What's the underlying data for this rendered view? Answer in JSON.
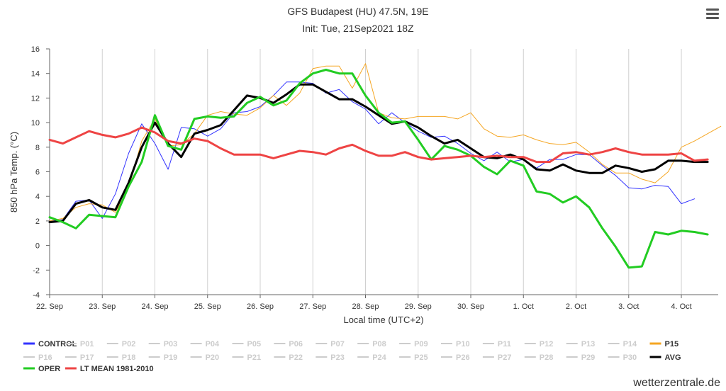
{
  "page": {
    "credit": "wetterzentrale.de",
    "menu_icon": "hamburger-menu-icon"
  },
  "chart_data": {
    "type": "line",
    "title": "GFS Budapest (HU) 47.5N, 19E",
    "subtitle": "Init: Tue, 21Sep2021 18Z",
    "xlabel": "Local time (UTC+2)",
    "ylabel": "850 hPa Temp. (°C)",
    "ylim": [
      -4,
      16
    ],
    "yticks": [
      -4,
      -2,
      0,
      2,
      4,
      6,
      8,
      10,
      12,
      14,
      16
    ],
    "xlim": [
      0,
      12.7
    ],
    "xtick_positions": [
      0,
      1,
      2,
      3,
      4,
      5,
      6,
      7,
      8,
      9,
      10,
      11,
      12
    ],
    "xtick_labels": [
      "22. Sep",
      "23. Sep",
      "24. Sep",
      "25. Sep",
      "26. Sep",
      "27. Sep",
      "28. Sep",
      "29. Sep",
      "30. Sep",
      "1. Oct",
      "2. Oct",
      "3. Oct",
      "4. Oct"
    ],
    "x_step_days": 0.25,
    "grid": {
      "vertical": true,
      "horizontal": false
    },
    "series": [
      {
        "name": "CONTROL",
        "color": "#3333ff",
        "width": 1,
        "values": [
          2.0,
          2.1,
          3.6,
          3.7,
          2.2,
          4.2,
          7.5,
          9.9,
          8.3,
          6.2,
          9.6,
          9.5,
          8.9,
          9.5,
          10.8,
          10.9,
          11.3,
          12.2,
          13.3,
          13.3,
          13.2,
          12.4,
          12.7,
          11.7,
          11.1,
          9.9,
          10.8,
          10.0,
          9.3,
          8.8,
          8.9,
          8.3,
          7.5,
          6.9,
          7.6,
          6.8,
          7.0,
          6.3,
          7.0,
          7.0,
          7.4,
          7.4,
          6.5,
          5.7,
          4.7,
          4.6,
          4.9,
          4.8,
          3.4,
          3.8
        ]
      },
      {
        "name": "P15",
        "color": "#f5a623",
        "width": 1,
        "values": [
          2.0,
          2.2,
          3.1,
          3.4,
          3.3,
          2.7,
          4.7,
          8.5,
          10.3,
          8.1,
          8.2,
          9.1,
          10.6,
          10.9,
          10.7,
          10.6,
          11.2,
          12.2,
          11.4,
          12.4,
          14.4,
          14.6,
          14.6,
          12.8,
          14.8,
          10.8,
          10.4,
          10.3,
          10.5,
          10.5,
          10.5,
          10.3,
          10.8,
          9.5,
          8.9,
          8.8,
          9.0,
          8.6,
          8.3,
          8.2,
          8.4,
          7.6,
          6.6,
          5.9,
          5.9,
          5.4,
          5.1,
          6.0,
          8.0,
          8.5,
          9.1,
          9.7
        ]
      },
      {
        "name": "AVG",
        "color": "#000000",
        "width": 3,
        "values": [
          1.9,
          2.0,
          3.4,
          3.7,
          3.1,
          2.9,
          5.1,
          8.0,
          10.0,
          8.3,
          7.2,
          9.1,
          9.4,
          9.8,
          11.0,
          12.2,
          12.0,
          11.6,
          12.3,
          13.1,
          13.1,
          12.5,
          11.9,
          11.9,
          11.3,
          10.6,
          9.9,
          10.1,
          9.6,
          8.9,
          8.3,
          8.6,
          7.9,
          7.2,
          7.1,
          7.4,
          7.0,
          6.2,
          6.1,
          6.6,
          6.1,
          5.9,
          5.9,
          6.5,
          6.3,
          6.0,
          6.2,
          6.9,
          6.9,
          6.8,
          6.8
        ]
      },
      {
        "name": "OPER",
        "color": "#22cc22",
        "width": 3,
        "values": [
          2.3,
          1.9,
          1.4,
          2.5,
          2.4,
          2.3,
          4.8,
          6.8,
          10.6,
          8.1,
          7.8,
          10.3,
          10.5,
          10.4,
          10.5,
          11.6,
          12.1,
          11.4,
          11.8,
          13.2,
          14.0,
          14.3,
          14.0,
          14.0,
          12.2,
          10.8,
          10.0,
          10.1,
          8.6,
          7.0,
          8.1,
          7.8,
          7.3,
          6.4,
          5.8,
          6.9,
          6.5,
          4.4,
          4.2,
          3.5,
          4.0,
          3.1,
          1.4,
          -0.1,
          -1.8,
          -1.7,
          1.1,
          0.9,
          1.2,
          1.1,
          0.9
        ]
      },
      {
        "name": "LT MEAN 1981-2010",
        "color": "#ee4444",
        "width": 3,
        "values": [
          8.6,
          8.3,
          8.8,
          9.3,
          9.0,
          8.8,
          9.1,
          9.6,
          9.2,
          8.5,
          8.3,
          8.7,
          8.5,
          7.9,
          7.4,
          7.4,
          7.4,
          7.1,
          7.4,
          7.7,
          7.6,
          7.4,
          7.9,
          8.2,
          7.7,
          7.3,
          7.3,
          7.6,
          7.2,
          7.0,
          7.1,
          7.2,
          7.3,
          7.2,
          7.3,
          7.2,
          7.2,
          6.8,
          6.8,
          7.5,
          7.6,
          7.4,
          7.6,
          7.9,
          7.6,
          7.4,
          7.4,
          7.4,
          7.5,
          6.9,
          7.0
        ]
      }
    ],
    "legend": {
      "placement": "bottom",
      "rows": [
        [
          "CONTROL",
          "P01",
          "P02",
          "P03",
          "P04",
          "P05",
          "P06",
          "P07",
          "P08",
          "P09",
          "P10",
          "P11",
          "P12",
          "P13",
          "P14",
          "P15"
        ],
        [
          "P16",
          "P17",
          "P18",
          "P19",
          "P20",
          "P21",
          "P22",
          "P23",
          "P24",
          "P25",
          "P26",
          "P27",
          "P28",
          "P29",
          "P30",
          "AVG"
        ],
        [
          "OPER",
          "LT MEAN 1981-2010"
        ]
      ],
      "active": {
        "CONTROL": "#3333ff",
        "P15": "#f5a623",
        "AVG": "#000000",
        "OPER": "#22cc22",
        "LT MEAN 1981-2010": "#ee4444"
      },
      "inactive_color": "#cccccc"
    }
  }
}
